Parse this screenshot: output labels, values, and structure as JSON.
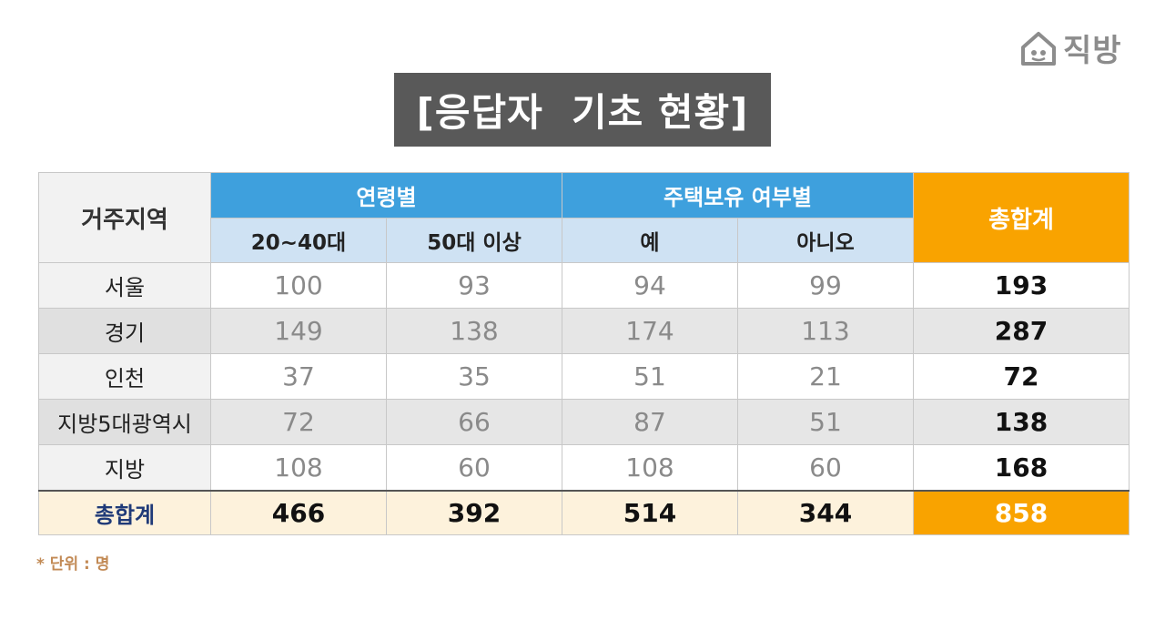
{
  "logo": {
    "text": "직방",
    "icon": "house-logo-icon"
  },
  "title": "[응답자  기초 현황]",
  "chart_data": {
    "type": "table",
    "header": {
      "region": "거주지역",
      "groups": [
        "연령별",
        "주택보유 여부별"
      ],
      "subheaders": [
        "20~40대",
        "50대 이상",
        "예",
        "아니오"
      ],
      "total": "총합계"
    },
    "rows": [
      {
        "label": "서울",
        "values": [
          100,
          93,
          94,
          99
        ],
        "total": 193
      },
      {
        "label": "경기",
        "values": [
          149,
          138,
          174,
          113
        ],
        "total": 287
      },
      {
        "label": "인천",
        "values": [
          37,
          35,
          51,
          21
        ],
        "total": 72
      },
      {
        "label": "지방5대광역시",
        "values": [
          72,
          66,
          87,
          51
        ],
        "total": 138
      },
      {
        "label": "지방",
        "values": [
          108,
          60,
          108,
          60
        ],
        "total": 168
      }
    ],
    "summary": {
      "label": "총합계",
      "values": [
        466,
        392,
        514,
        344
      ],
      "total": 858
    }
  },
  "note": "* 단위 : 명",
  "colors": {
    "header_blue": "#3ea0dd",
    "subheader_blue": "#cfe2f3",
    "total_orange": "#f9a300",
    "title_bg": "#595959"
  }
}
